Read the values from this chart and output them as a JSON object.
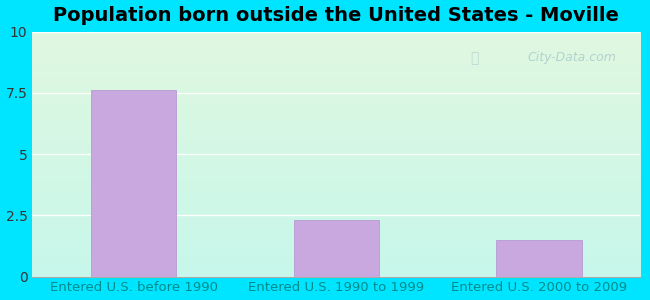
{
  "title": "Population born outside the United States - Moville",
  "categories": [
    "Entered U.S. before 1990",
    "Entered U.S. 1990 to 1999",
    "Entered U.S. 2000 to 2009"
  ],
  "values": [
    7.6,
    2.3,
    1.5
  ],
  "bar_color": "#c9a8e0",
  "bar_edge_color": "#b899d4",
  "yticks": [
    0,
    2.5,
    5,
    7.5,
    10
  ],
  "ylim": [
    0,
    10
  ],
  "title_fontsize": 14,
  "tick_label_color": "#008b8b",
  "tick_label_fontsize": 9.5,
  "ytick_color": "#333333",
  "background_outer": "#00e5ff",
  "watermark": "City-Data.com"
}
